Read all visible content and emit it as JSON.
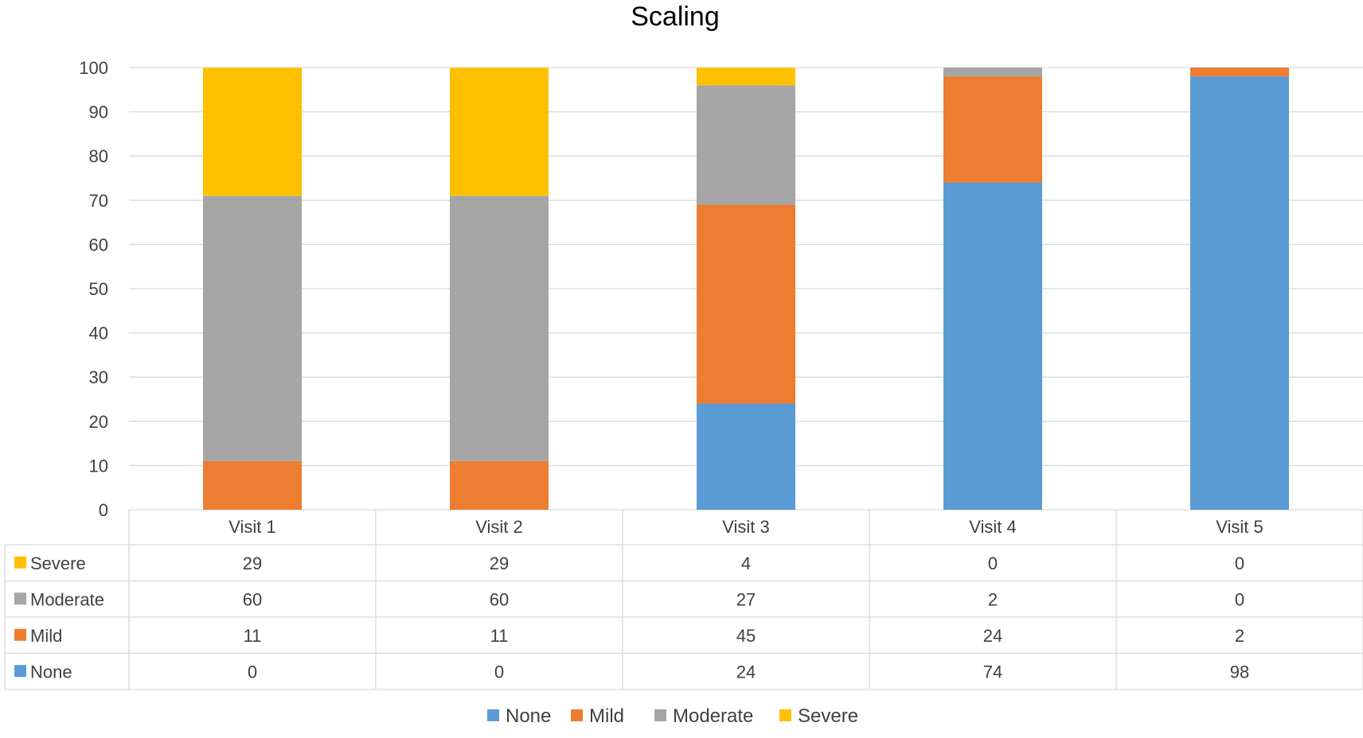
{
  "chart_data": {
    "type": "bar",
    "stacked": true,
    "title": "Scaling",
    "xlabel": "",
    "ylabel": "",
    "categories": [
      "Visit 1",
      "Visit 2",
      "Visit 3",
      "Visit 4",
      "Visit 5"
    ],
    "ylim": [
      0,
      100
    ],
    "yticks": [
      "0",
      "10",
      "20",
      "30",
      "40",
      "50",
      "60",
      "70",
      "80",
      "90",
      "100"
    ],
    "grid": true,
    "legend_position": "bottom",
    "data_table": true,
    "series": [
      {
        "name": "None",
        "color": "#5B9BD5",
        "values": [
          0,
          0,
          24,
          74,
          98
        ]
      },
      {
        "name": "Mild",
        "color": "#ED7D31",
        "values": [
          11,
          11,
          45,
          24,
          2
        ]
      },
      {
        "name": "Moderate",
        "color": "#A5A5A5",
        "values": [
          60,
          60,
          27,
          2,
          0
        ]
      },
      {
        "name": "Severe",
        "color": "#FFC000",
        "values": [
          29,
          29,
          4,
          0,
          0
        ]
      }
    ]
  }
}
